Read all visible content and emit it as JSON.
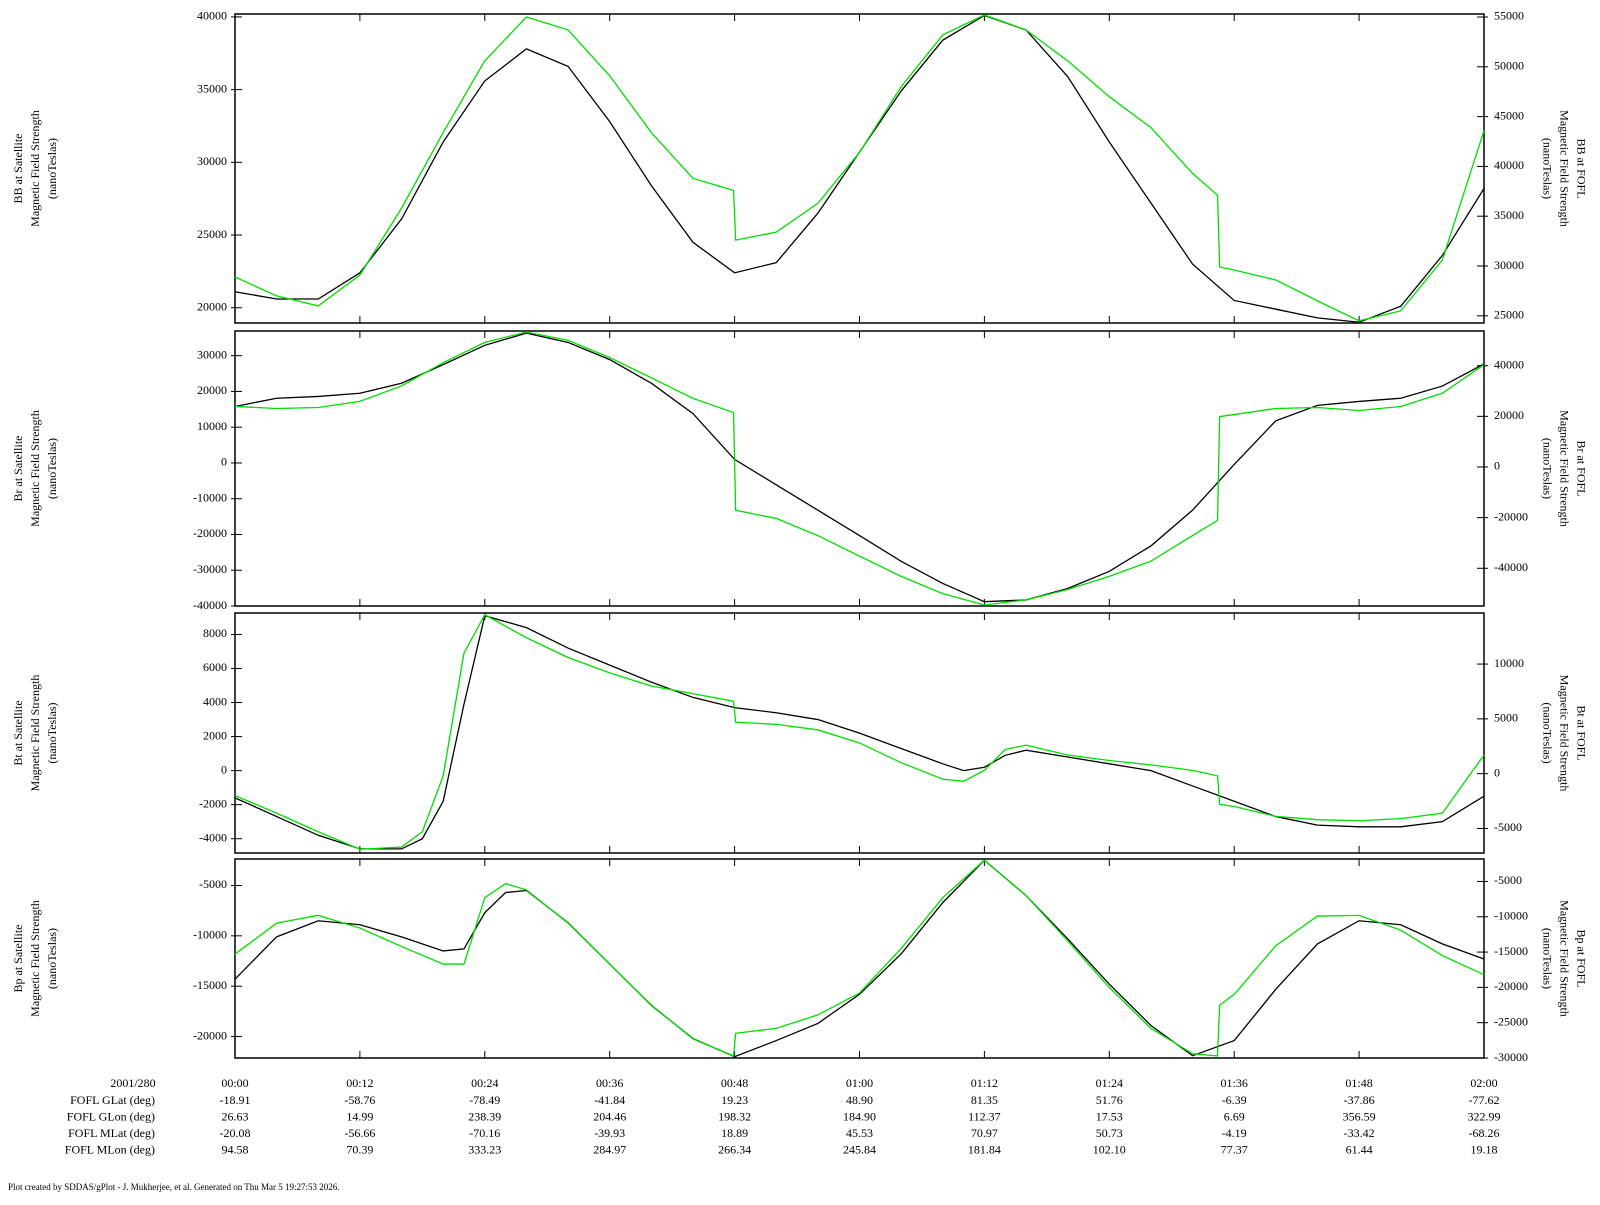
{
  "chart_data": [
    {
      "type": "line",
      "ylabel": [
        "BB at Satellite",
        "Magnetic Field Strength",
        "(nanoTeslas)"
      ],
      "y2label": [
        "BB at FOFL",
        "Magnetic Field Strength",
        "(nanoTeslas)"
      ],
      "xlim": [
        0,
        120
      ],
      "xticks": [
        0,
        12,
        24,
        36,
        48,
        60,
        72,
        84,
        96,
        108,
        120
      ],
      "ylim": [
        18950,
        40200
      ],
      "yticks": [
        20000,
        25000,
        30000,
        35000,
        40000
      ],
      "y2lim": [
        24280,
        55300
      ],
      "y2ticks": [
        25000,
        30000,
        35000,
        40000,
        45000,
        50000,
        55000
      ],
      "series": [
        {
          "color": "#000000",
          "x": [
            0,
            4,
            8,
            12,
            16,
            20,
            24,
            28,
            32,
            36,
            40,
            44,
            48,
            52,
            56,
            60,
            64,
            68,
            72,
            76,
            80,
            84,
            88,
            92,
            96,
            100,
            104,
            108,
            112,
            116,
            120
          ],
          "values": [
            21100,
            20600,
            20600,
            22400,
            26100,
            31400,
            35600,
            37800,
            36600,
            32800,
            28400,
            24500,
            22400,
            23100,
            26500,
            30700,
            34900,
            38400,
            40100,
            39100,
            35900,
            31400,
            27200,
            23000,
            20500,
            19900,
            19300,
            19000,
            20100,
            23600,
            28200
          ]
        },
        {
          "color": "#00dd00",
          "axis": "y2",
          "x": [
            0,
            4,
            8,
            12,
            16,
            20,
            24,
            28,
            32,
            36,
            40,
            44,
            47.9,
            48.1,
            52,
            56,
            60,
            64,
            68,
            72,
            76,
            80,
            84,
            88,
            92,
            94.4,
            94.6,
            96,
            100,
            104,
            108,
            112,
            116,
            120
          ],
          "values": [
            28900,
            27000,
            26000,
            29100,
            35800,
            43400,
            50600,
            55000,
            53700,
            49100,
            43400,
            38800,
            37600,
            32600,
            33400,
            36300,
            41400,
            48000,
            53200,
            55200,
            53700,
            50600,
            47000,
            43900,
            39300,
            37100,
            29900,
            29600,
            28600,
            26500,
            24500,
            25500,
            30600,
            43600
          ]
        }
      ]
    },
    {
      "type": "line",
      "ylabel": [
        "Br at Satellite",
        "Magnetic Field Strength",
        "(nanoTeslas)"
      ],
      "y2label": [
        "Br at FOFL",
        "Magnetic Field Strength",
        "(nanoTeslas)"
      ],
      "xlim": [
        0,
        120
      ],
      "xticks": [
        0,
        12,
        24,
        36,
        48,
        60,
        72,
        84,
        96,
        108,
        120
      ],
      "ylim": [
        -40000,
        36900
      ],
      "yticks": [
        -40000,
        -30000,
        -20000,
        -10000,
        0,
        10000,
        20000,
        30000
      ],
      "y2lim": [
        -54900,
        53700
      ],
      "y2ticks": [
        -40000,
        -20000,
        0,
        20000,
        40000
      ],
      "series": [
        {
          "color": "#000000",
          "x": [
            0,
            4,
            8,
            12,
            16,
            20,
            24,
            28,
            32,
            36,
            40,
            44,
            48,
            52,
            56,
            60,
            64,
            68,
            72,
            76,
            80,
            84,
            88,
            92,
            96,
            100,
            104,
            108,
            112,
            116,
            120
          ],
          "values": [
            15800,
            18100,
            18600,
            19500,
            22300,
            27500,
            32900,
            36300,
            33700,
            28900,
            22300,
            13800,
            1000,
            -6100,
            -13200,
            -20300,
            -27500,
            -33700,
            -38800,
            -38300,
            -35100,
            -30300,
            -23200,
            -13200,
            -400,
            11800,
            16100,
            17200,
            18100,
            21500,
            27700
          ]
        },
        {
          "color": "#00dd00",
          "axis": "y2",
          "x": [
            0,
            4,
            8,
            12,
            16,
            20,
            24,
            28,
            32,
            36,
            40,
            44,
            47.9,
            48.1,
            52,
            56,
            60,
            64,
            68,
            72,
            76,
            80,
            84,
            88,
            92,
            94.4,
            94.6,
            96,
            100,
            104,
            108,
            112,
            116,
            120
          ],
          "values": [
            23900,
            23100,
            23500,
            25900,
            32000,
            41200,
            49200,
            53300,
            50000,
            43200,
            35200,
            27100,
            21500,
            -17100,
            -20300,
            -27100,
            -35200,
            -43200,
            -50000,
            -54500,
            -52500,
            -48400,
            -43200,
            -37200,
            -27100,
            -21100,
            19900,
            20700,
            23100,
            23500,
            22300,
            23900,
            29100,
            40400
          ]
        }
      ]
    },
    {
      "type": "line",
      "ylabel": [
        "Bt at Satellite",
        "Magnetic Field Strength",
        "(nanoTeslas)"
      ],
      "y2label": [
        "Bt at FOFL",
        "Magnetic Field Strength",
        "(nanoTeslas)"
      ],
      "xlim": [
        0,
        120
      ],
      "xticks": [
        0,
        12,
        24,
        36,
        48,
        60,
        72,
        84,
        96,
        108,
        120
      ],
      "ylim": [
        -4840,
        9260
      ],
      "yticks": [
        -4000,
        -2000,
        0,
        2000,
        4000,
        6000,
        8000
      ],
      "y2lim": [
        -7240,
        14660
      ],
      "y2ticks": [
        -5000,
        0,
        5000,
        10000
      ],
      "series": [
        {
          "color": "#000000",
          "x": [
            0,
            4,
            8,
            12,
            16,
            18,
            20,
            22,
            24,
            28,
            32,
            36,
            40,
            44,
            48,
            52,
            56,
            60,
            64,
            68,
            70,
            72,
            74,
            76,
            80,
            84,
            88,
            92,
            96,
            100,
            104,
            108,
            112,
            116,
            120
          ],
          "values": [
            -1600,
            -2700,
            -3800,
            -4600,
            -4600,
            -4000,
            -1800,
            3900,
            9100,
            8400,
            7200,
            6200,
            5200,
            4300,
            3700,
            3400,
            3000,
            2200,
            1300,
            400,
            0,
            200,
            900,
            1200,
            800,
            400,
            0,
            -900,
            -1800,
            -2700,
            -3200,
            -3300,
            -3300,
            -3000,
            -1500
          ]
        },
        {
          "color": "#00dd00",
          "axis": "y2",
          "x": [
            0,
            4,
            8,
            12,
            16,
            18,
            20,
            22,
            24,
            28,
            32,
            36,
            40,
            44,
            47.9,
            48.1,
            52,
            56,
            60,
            64,
            68,
            70,
            72,
            74,
            76,
            80,
            84,
            88,
            92,
            94.4,
            94.6,
            96,
            100,
            104,
            108,
            112,
            116,
            120
          ],
          "values": [
            -2000,
            -3600,
            -5300,
            -6900,
            -6700,
            -5300,
            -200,
            11000,
            14500,
            12400,
            10600,
            9200,
            8000,
            7300,
            6600,
            4700,
            4500,
            4000,
            2800,
            1000,
            -500,
            -700,
            300,
            2200,
            2600,
            1700,
            1200,
            800,
            300,
            -200,
            -2800,
            -3000,
            -3900,
            -4200,
            -4300,
            -4100,
            -3600,
            1700
          ]
        }
      ]
    },
    {
      "type": "line",
      "ylabel": [
        "Bp at Satellite",
        "Magnetic Field Strength",
        "(nanoTeslas)"
      ],
      "y2label": [
        "Bp at FOFL",
        "Magnetic Field Strength",
        "(nanoTeslas)"
      ],
      "xlim": [
        0,
        120
      ],
      "xticks": [
        {
          "value": 0,
          "label": "00:00"
        },
        {
          "value": 12,
          "label": "00:12"
        },
        {
          "value": 24,
          "label": "00:24"
        },
        {
          "value": 36,
          "label": "00:36"
        },
        {
          "value": 48,
          "label": "00:48"
        },
        {
          "value": 60,
          "label": "01:00"
        },
        {
          "value": 72,
          "label": "01:12"
        },
        {
          "value": 84,
          "label": "01:24"
        },
        {
          "value": 96,
          "label": "01:36"
        },
        {
          "value": 108,
          "label": "01:48"
        },
        {
          "value": 120,
          "label": "02:00"
        }
      ],
      "ylim": [
        -22130,
        -2370
      ],
      "yticks": [
        -20000,
        -15000,
        -10000,
        -5000
      ],
      "y2lim": [
        -30000,
        -1820
      ],
      "y2ticks": [
        -30000,
        -25000,
        -20000,
        -15000,
        -10000,
        -5000
      ],
      "series": [
        {
          "color": "#000000",
          "x": [
            0,
            4,
            8,
            12,
            16,
            20,
            22,
            24,
            26,
            28,
            32,
            36,
            40,
            44,
            48,
            52,
            56,
            60,
            64,
            68,
            72,
            76,
            80,
            84,
            88,
            92,
            96,
            100,
            104,
            108,
            112,
            116,
            120
          ],
          "values": [
            -14300,
            -10100,
            -8500,
            -8900,
            -10100,
            -11500,
            -11300,
            -7700,
            -5700,
            -5500,
            -8700,
            -12800,
            -16900,
            -20200,
            -22000,
            -20400,
            -18700,
            -15800,
            -11800,
            -6700,
            -2500,
            -6000,
            -10300,
            -14800,
            -18900,
            -21900,
            -20400,
            -15300,
            -10800,
            -8500,
            -8900,
            -10800,
            -12300
          ]
        },
        {
          "color": "#00dd00",
          "axis": "y2",
          "x": [
            0,
            4,
            8,
            12,
            16,
            20,
            22,
            24,
            26,
            28,
            32,
            36,
            40,
            44,
            47.9,
            48.1,
            52,
            56,
            60,
            64,
            68,
            72,
            76,
            80,
            84,
            88,
            92,
            94.4,
            94.6,
            96,
            100,
            104,
            108,
            112,
            116,
            120
          ],
          "values": [
            -15300,
            -10900,
            -9800,
            -11600,
            -14200,
            -16700,
            -16700,
            -7300,
            -5300,
            -6200,
            -10900,
            -16700,
            -22500,
            -27300,
            -29700,
            -26500,
            -25800,
            -23900,
            -20800,
            -14500,
            -7300,
            -2000,
            -7000,
            -13400,
            -20000,
            -25800,
            -29400,
            -29700,
            -22500,
            -21000,
            -14100,
            -9900,
            -9800,
            -11900,
            -15500,
            -18200
          ]
        }
      ]
    }
  ],
  "ephemeris": {
    "date": "2001/280",
    "rows": [
      {
        "label": "FOFL GLat (deg)",
        "values": [
          "-18.91",
          "-58.76",
          "-78.49",
          "-41.84",
          "19.23",
          "48.90",
          "81.35",
          "51.76",
          "-6.39",
          "-37.86",
          "-77.62"
        ]
      },
      {
        "label": "FOFL GLon (deg)",
        "values": [
          "26.63",
          "14.99",
          "238.39",
          "204.46",
          "198.32",
          "184.90",
          "112.37",
          "17.53",
          "6.69",
          "356.59",
          "322.99"
        ]
      },
      {
        "label": "FOFL MLat (deg)",
        "values": [
          "-20.08",
          "-56.66",
          "-70.16",
          "-39.93",
          "18.89",
          "45.53",
          "70.97",
          "50.73",
          "-4.19",
          "-33.42",
          "-68.26"
        ]
      },
      {
        "label": "FOFL MLon (deg)",
        "values": [
          "94.58",
          "70.39",
          "333.23",
          "284.97",
          "266.34",
          "245.84",
          "181.84",
          "102.10",
          "77.37",
          "61.44",
          "19.18"
        ]
      }
    ]
  },
  "footer": "Plot created by SDDAS/gPlot - J. Mukherjee, et al.  Generated on Thu Mar 5 19:27:53 2026."
}
